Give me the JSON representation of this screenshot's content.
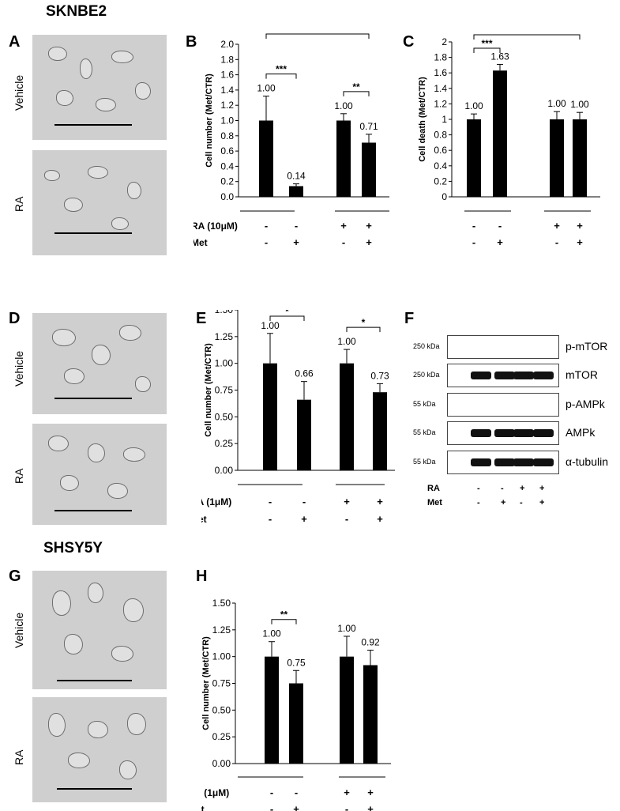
{
  "titles": {
    "top": "SKNBE2",
    "bottom": "SHSY5Y"
  },
  "panel_letters": [
    "A",
    "B",
    "C",
    "D",
    "E",
    "F",
    "G",
    "H"
  ],
  "row_labels": {
    "vehicle": "Vehicle",
    "ra": "RA"
  },
  "signs": {
    "minus": "-",
    "plus": "+"
  },
  "chart_data": [
    {
      "panel": "B",
      "type": "bar",
      "ylabel": "Cell number (Met/CTR)",
      "ylim": [
        0,
        2.0
      ],
      "yticks": [
        "0.0",
        "0.2",
        "0.4",
        "0.6",
        "0.8",
        "1.0",
        "1.2",
        "1.4",
        "1.6",
        "1.8",
        "2.0"
      ],
      "values": [
        1.0,
        0.14,
        1.0,
        0.71
      ],
      "errors": [
        0.32,
        0.03,
        0.09,
        0.11
      ],
      "value_labels": [
        "1.00",
        "0.14",
        "1.00",
        "0.71"
      ],
      "sig": [
        {
          "from": 0,
          "to": 1,
          "label": "***"
        },
        {
          "from": 2,
          "to": 3,
          "label": "**"
        },
        {
          "from": 0,
          "to": 3,
          "label": "***"
        }
      ],
      "row1_label": "RA (10μM)",
      "row2_label": "Met",
      "ra": [
        "-",
        "-",
        "+",
        "+"
      ],
      "met": [
        "-",
        "+",
        "-",
        "+"
      ]
    },
    {
      "panel": "C",
      "type": "bar",
      "ylabel": "Cell death (Met/CTR)",
      "ylim": [
        0,
        2
      ],
      "yticks": [
        "0",
        "0.2",
        "0.4",
        "0.6",
        "0.8",
        "1",
        "1.2",
        "1.4",
        "1.6",
        "1.8",
        "2"
      ],
      "values": [
        1.0,
        1.63,
        1.0,
        1.0
      ],
      "errors": [
        0.07,
        0.08,
        0.1,
        0.09
      ],
      "value_labels": [
        "1.00",
        "1.63",
        "1.00",
        "1.00"
      ],
      "sig": [
        {
          "from": 0,
          "to": 1,
          "label": "***"
        },
        {
          "from": 0,
          "to": 3,
          "label": "***"
        }
      ],
      "row1_label": "",
      "row2_label": "",
      "ra": [
        "-",
        "-",
        "+",
        "+"
      ],
      "met": [
        "-",
        "+",
        "-",
        "+"
      ]
    },
    {
      "panel": "E",
      "type": "bar",
      "ylabel": "Cell number (Met/CTR)",
      "ylim": [
        0,
        1.5
      ],
      "yticks": [
        "0.00",
        "0.25",
        "0.50",
        "0.75",
        "1.00",
        "1.25",
        "1.50"
      ],
      "values": [
        1.0,
        0.66,
        1.0,
        0.73
      ],
      "errors": [
        0.28,
        0.17,
        0.13,
        0.08
      ],
      "value_labels": [
        "1.00",
        "0.66",
        "1.00",
        "0.73"
      ],
      "sig": [
        {
          "from": 0,
          "to": 1,
          "label": "*"
        },
        {
          "from": 2,
          "to": 3,
          "label": "*"
        }
      ],
      "row1_label": "RA (1μM)",
      "row2_label": "Met",
      "ra": [
        "-",
        "-",
        "+",
        "+"
      ],
      "met": [
        "-",
        "+",
        "-",
        "+"
      ]
    },
    {
      "panel": "H",
      "type": "bar",
      "ylabel": "Cell number (Met/CTR)",
      "ylim": [
        0,
        1.5
      ],
      "yticks": [
        "0.00",
        "0.25",
        "0.50",
        "0.75",
        "1.00",
        "1.25",
        "1.50"
      ],
      "values": [
        1.0,
        0.75,
        1.0,
        0.92
      ],
      "errors": [
        0.14,
        0.12,
        0.19,
        0.14
      ],
      "value_labels": [
        "1.00",
        "0.75",
        "1.00",
        "0.92"
      ],
      "sig": [
        {
          "from": 0,
          "to": 1,
          "label": "**"
        }
      ],
      "row1_label": "RA (1μM)",
      "row2_label": "Met",
      "ra": [
        "-",
        "-",
        "+",
        "+"
      ],
      "met": [
        "-",
        "+",
        "-",
        "+"
      ]
    }
  ],
  "blot": {
    "rows": [
      {
        "label": "p-mTOR",
        "kda": "250 kDa"
      },
      {
        "label": "mTOR",
        "kda": "250 kDa"
      },
      {
        "label": "p-AMPk",
        "kda": "55 kDa"
      },
      {
        "label": "AMPk",
        "kda": "55 kDa"
      },
      {
        "label": "α-tubulin",
        "kda": "55 kDa"
      }
    ],
    "row1_label": "RA",
    "row2_label": "Met",
    "ra": [
      "-",
      "-",
      "+",
      "+"
    ],
    "met": [
      "-",
      "+",
      "-",
      "+"
    ]
  }
}
